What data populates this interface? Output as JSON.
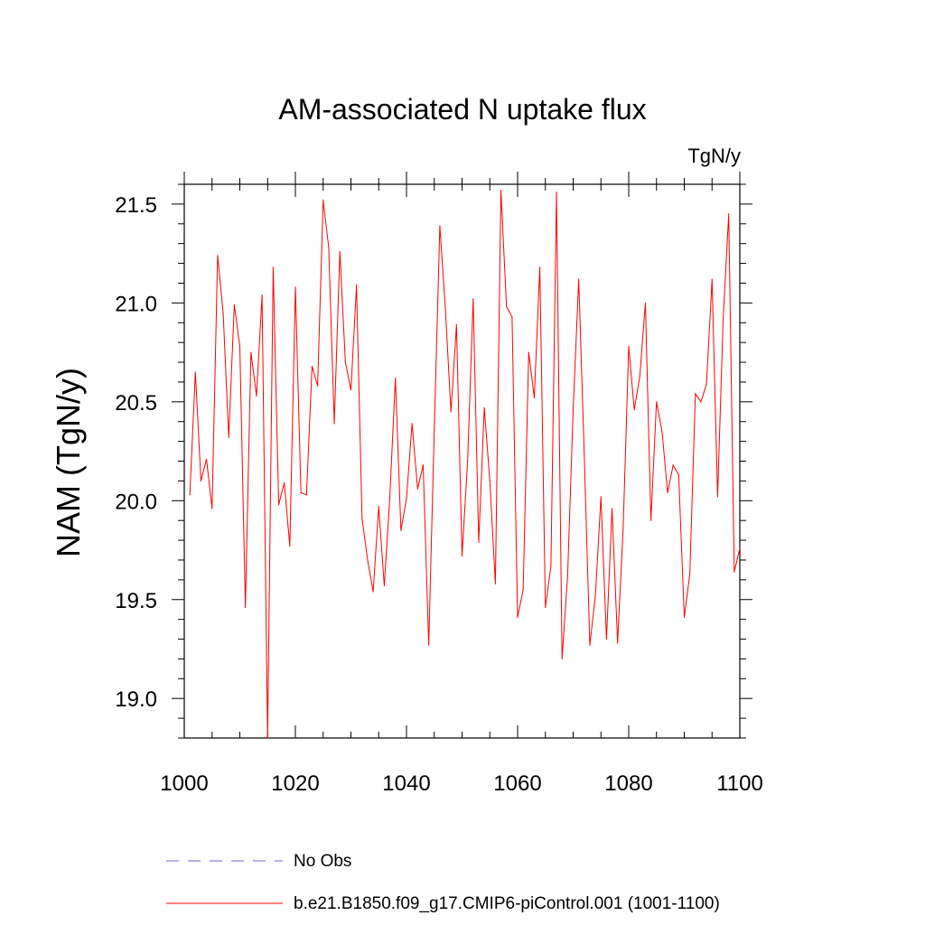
{
  "chart_data": {
    "type": "line",
    "title": "AM-associated N uptake flux",
    "units_label": "TgN/y",
    "xlabel": "",
    "ylabel": "NAM  (TgN/y)",
    "xlim": [
      1000,
      1100
    ],
    "ylim": [
      18.8,
      21.6
    ],
    "x_ticks": [
      "1000",
      "1020",
      "1040",
      "1060",
      "1080",
      "1100"
    ],
    "y_ticks": [
      "19.0",
      "19.5",
      "20.0",
      "20.5",
      "21.0",
      "21.5"
    ],
    "legend": {
      "position": "bottom",
      "entries": [
        {
          "label": "No Obs",
          "color": "#6666cc",
          "style": "dashed"
        },
        {
          "label": "b.e21.B1850.f09_g17.CMIP6-piControl.001 (1001-1100)",
          "color": "#ff0000",
          "style": "solid"
        }
      ]
    },
    "series": [
      {
        "name": "b.e21.B1850.f09_g17.CMIP6-piControl.001 (1001-1100)",
        "color": "#ff0000",
        "x": [
          1001,
          1002,
          1003,
          1004,
          1005,
          1006,
          1007,
          1008,
          1009,
          1010,
          1011,
          1012,
          1013,
          1014,
          1015,
          1016,
          1017,
          1018,
          1019,
          1020,
          1021,
          1022,
          1023,
          1024,
          1025,
          1026,
          1027,
          1028,
          1029,
          1030,
          1031,
          1032,
          1033,
          1034,
          1035,
          1036,
          1037,
          1038,
          1039,
          1040,
          1041,
          1042,
          1043,
          1044,
          1045,
          1046,
          1047,
          1048,
          1049,
          1050,
          1051,
          1052,
          1053,
          1054,
          1055,
          1056,
          1057,
          1058,
          1059,
          1060,
          1061,
          1062,
          1063,
          1064,
          1065,
          1066,
          1067,
          1068,
          1069,
          1070,
          1071,
          1072,
          1073,
          1074,
          1075,
          1076,
          1077,
          1078,
          1079,
          1080,
          1081,
          1082,
          1083,
          1084,
          1085,
          1086,
          1087,
          1088,
          1089,
          1090,
          1091,
          1092,
          1093,
          1094,
          1095,
          1096,
          1097,
          1098,
          1099,
          1100
        ],
        "values": [
          20.03,
          20.65,
          20.1,
          20.21,
          19.96,
          21.24,
          20.95,
          20.32,
          20.99,
          20.78,
          19.46,
          20.75,
          20.53,
          21.04,
          18.8,
          21.18,
          19.98,
          20.09,
          19.77,
          21.08,
          20.04,
          20.03,
          20.68,
          20.58,
          21.52,
          21.28,
          20.39,
          21.26,
          20.7,
          20.56,
          21.09,
          19.91,
          19.7,
          19.54,
          19.97,
          19.57,
          20.02,
          20.62,
          19.85,
          20.01,
          20.39,
          20.06,
          20.18,
          19.27,
          20.36,
          21.39,
          20.97,
          20.45,
          20.89,
          19.72,
          20.2,
          21.02,
          19.79,
          20.47,
          20.1,
          19.58,
          21.57,
          20.98,
          20.93,
          19.41,
          19.55,
          20.75,
          20.52,
          21.18,
          19.46,
          19.67,
          21.56,
          19.2,
          19.62,
          20.46,
          21.12,
          20.23,
          19.27,
          19.52,
          20.02,
          19.3,
          19.96,
          19.28,
          19.86,
          20.78,
          20.46,
          20.63,
          21.0,
          19.9,
          20.5,
          20.35,
          20.04,
          20.18,
          20.13,
          19.41,
          19.63,
          20.54,
          20.5,
          20.59,
          21.12,
          20.02,
          20.92,
          21.45,
          19.64,
          19.76
        ]
      }
    ]
  }
}
